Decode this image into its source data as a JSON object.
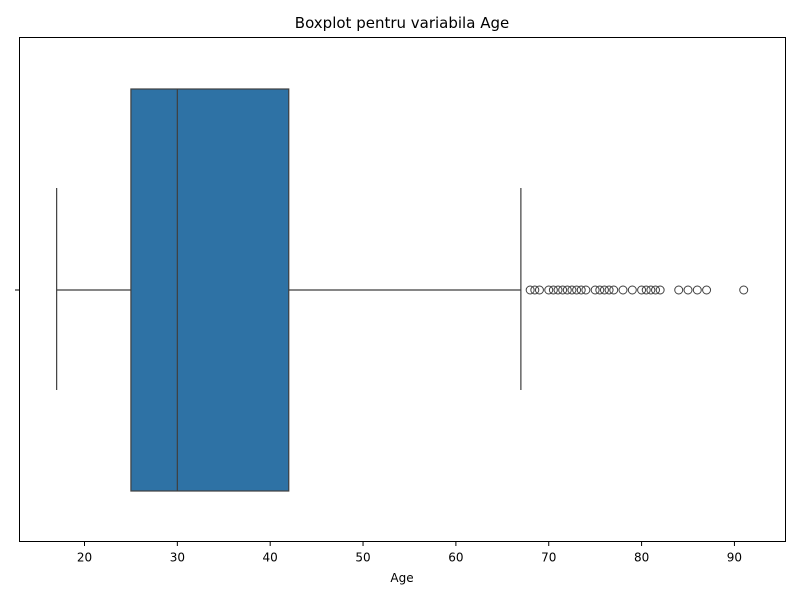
{
  "chart_data": {
    "type": "boxplot",
    "title": "Boxplot pentru variabila Age",
    "xlabel": "Age",
    "ylabel": "",
    "xlim": [
      13,
      95.5
    ],
    "xticks": [
      20,
      30,
      40,
      50,
      60,
      70,
      80,
      90
    ],
    "grid": false,
    "orientation": "horizontal",
    "colors": {
      "box_fill": "#2e72a5",
      "line": "#3f3f3f",
      "axis": "#000000"
    },
    "box": {
      "whisker_low": 17,
      "q1": 25,
      "median": 30,
      "q3": 42,
      "whisker_high": 67
    },
    "outliers": [
      68,
      68.5,
      69,
      70,
      70.5,
      71,
      71.5,
      72,
      72.5,
      73,
      73.5,
      74,
      75,
      75.5,
      76,
      76.5,
      77,
      78,
      79,
      80,
      80.5,
      81,
      81.5,
      82,
      84,
      85,
      86,
      87,
      91
    ]
  }
}
